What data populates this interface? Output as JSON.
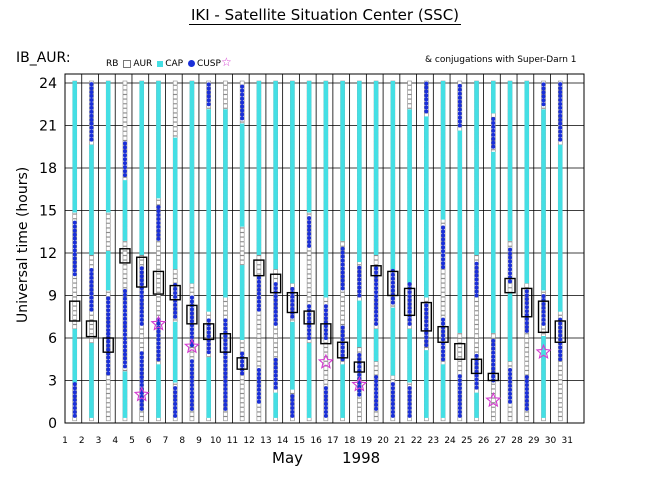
{
  "title": "IKI - Satellite Situation Center (SSC)",
  "panel_label": "IB_AUR:",
  "legend": {
    "rb": "RB",
    "aur": "AUR",
    "cap": "CAP",
    "cusp": "CUSP",
    "conjugation_note": "& conjugations with Super-Darn 1"
  },
  "colors": {
    "aur": "#8a8a8a",
    "cap": "#44dfe4",
    "cusp": "#1a2fd8",
    "conjugation": "#d43ad0",
    "rb_box": "#000000"
  },
  "chart_data": {
    "type": "scatter",
    "title": "IKI - Satellite Situation Center (SSC)",
    "ylabel": "Universal time (hours)",
    "xlabel_month": "May",
    "xlabel_year": "1998",
    "xlim": [
      1,
      32
    ],
    "ylim": [
      0,
      24
    ],
    "x_ticks": [
      1,
      2,
      3,
      4,
      5,
      6,
      7,
      8,
      9,
      10,
      11,
      12,
      13,
      14,
      15,
      16,
      17,
      18,
      19,
      20,
      21,
      22,
      23,
      24,
      25,
      26,
      27,
      28,
      29,
      30,
      31
    ],
    "y_ticks": [
      0,
      3,
      6,
      9,
      12,
      15,
      18,
      21,
      24
    ],
    "grid": true,
    "rb_boxes": [
      {
        "day": 2,
        "start": 7.2,
        "end": 8.6
      },
      {
        "day": 3,
        "start": 6.1,
        "end": 7.2
      },
      {
        "day": 4,
        "start": 5.0,
        "end": 6.0
      },
      {
        "day": 5,
        "start": 11.3,
        "end": 12.3
      },
      {
        "day": 6,
        "start": 9.6,
        "end": 11.7
      },
      {
        "day": 7,
        "start": 9.1,
        "end": 10.7
      },
      {
        "day": 8,
        "start": 8.7,
        "end": 9.7
      },
      {
        "day": 9,
        "start": 7.0,
        "end": 8.3
      },
      {
        "day": 10,
        "start": 5.9,
        "end": 7.0
      },
      {
        "day": 11,
        "start": 5.0,
        "end": 6.3
      },
      {
        "day": 12,
        "start": 3.8,
        "end": 4.6
      },
      {
        "day": 13,
        "start": 10.4,
        "end": 11.5
      },
      {
        "day": 14,
        "start": 9.2,
        "end": 10.5
      },
      {
        "day": 15,
        "start": 7.8,
        "end": 9.2
      },
      {
        "day": 16,
        "start": 7.0,
        "end": 7.9
      },
      {
        "day": 17,
        "start": 5.6,
        "end": 7.0
      },
      {
        "day": 18,
        "start": 4.6,
        "end": 5.7
      },
      {
        "day": 19,
        "start": 3.6,
        "end": 4.3
      },
      {
        "day": 20,
        "start": 10.4,
        "end": 11.1
      },
      {
        "day": 21,
        "start": 9.0,
        "end": 10.7
      },
      {
        "day": 22,
        "start": 7.6,
        "end": 9.5
      },
      {
        "day": 23,
        "start": 6.5,
        "end": 8.5
      },
      {
        "day": 24,
        "start": 5.7,
        "end": 6.8
      },
      {
        "day": 25,
        "start": 4.5,
        "end": 5.6
      },
      {
        "day": 26,
        "start": 3.5,
        "end": 4.5
      },
      {
        "day": 27,
        "start": 3.0,
        "end": 3.5
      },
      {
        "day": 28,
        "start": 9.2,
        "end": 10.2
      },
      {
        "day": 29,
        "start": 7.5,
        "end": 9.5
      },
      {
        "day": 30,
        "start": 6.4,
        "end": 8.6
      },
      {
        "day": 31,
        "start": 5.7,
        "end": 7.2
      }
    ],
    "conjugations": [
      {
        "day": 6,
        "ut": 2.0
      },
      {
        "day": 7,
        "ut": 7.0
      },
      {
        "day": 9,
        "ut": 5.4
      },
      {
        "day": 17,
        "ut": 4.3
      },
      {
        "day": 19,
        "ut": 2.7
      },
      {
        "day": 27,
        "ut": 1.6
      },
      {
        "day": 30,
        "ut": 5.0
      }
    ],
    "cusp_bands": [
      {
        "day": 2,
        "start": 0.5,
        "end": 2.8
      },
      {
        "day": 2,
        "start": 10.5,
        "end": 14.2
      },
      {
        "day": 3,
        "start": 8.0,
        "end": 11.0
      },
      {
        "day": 3,
        "start": 20.0,
        "end": 24.0
      },
      {
        "day": 4,
        "start": 3.5,
        "end": 6.5
      },
      {
        "day": 4,
        "start": 6.0,
        "end": 9.0
      },
      {
        "day": 5,
        "start": 4.0,
        "end": 9.5
      },
      {
        "day": 5,
        "start": 17.5,
        "end": 20.0
      },
      {
        "day": 6,
        "start": 1.0,
        "end": 5.0
      },
      {
        "day": 6,
        "start": 7.0,
        "end": 11.0
      },
      {
        "day": 7,
        "start": 4.5,
        "end": 7.5
      },
      {
        "day": 7,
        "start": 13.0,
        "end": 15.5
      },
      {
        "day": 8,
        "start": 0.5,
        "end": 2.5
      },
      {
        "day": 8,
        "start": 7.5,
        "end": 10.0
      },
      {
        "day": 9,
        "start": 1.0,
        "end": 4.5
      },
      {
        "day": 9,
        "start": 5.5,
        "end": 9.0
      },
      {
        "day": 10,
        "start": 5.0,
        "end": 7.5
      },
      {
        "day": 10,
        "start": 22.5,
        "end": 24.0
      },
      {
        "day": 11,
        "start": 1.0,
        "end": 5.0
      },
      {
        "day": 11,
        "start": 5.0,
        "end": 7.5
      },
      {
        "day": 12,
        "start": 3.5,
        "end": 5.0
      },
      {
        "day": 12,
        "start": 21.5,
        "end": 24.0
      },
      {
        "day": 13,
        "start": 1.5,
        "end": 4.0
      },
      {
        "day": 13,
        "start": 8.0,
        "end": 10.5
      },
      {
        "day": 14,
        "start": 2.5,
        "end": 4.5
      },
      {
        "day": 14,
        "start": 7.0,
        "end": 10.0
      },
      {
        "day": 15,
        "start": 0.5,
        "end": 2.0
      },
      {
        "day": 15,
        "start": 7.5,
        "end": 9.5
      },
      {
        "day": 16,
        "start": 6.0,
        "end": 8.5
      },
      {
        "day": 16,
        "start": 12.5,
        "end": 14.5
      },
      {
        "day": 17,
        "start": 0.5,
        "end": 2.5
      },
      {
        "day": 17,
        "start": 6.0,
        "end": 8.5
      },
      {
        "day": 18,
        "start": 4.5,
        "end": 7.0
      },
      {
        "day": 18,
        "start": 9.5,
        "end": 12.5
      },
      {
        "day": 19,
        "start": 2.0,
        "end": 5.0
      },
      {
        "day": 19,
        "start": 9.0,
        "end": 11.0
      },
      {
        "day": 20,
        "start": 1.0,
        "end": 3.5
      },
      {
        "day": 20,
        "start": 7.0,
        "end": 11.0
      },
      {
        "day": 21,
        "start": 0.5,
        "end": 3.0
      },
      {
        "day": 21,
        "start": 8.5,
        "end": 11.0
      },
      {
        "day": 22,
        "start": 0.5,
        "end": 2.5
      },
      {
        "day": 22,
        "start": 7.0,
        "end": 10.0
      },
      {
        "day": 23,
        "start": 5.5,
        "end": 8.5
      },
      {
        "day": 23,
        "start": 22.0,
        "end": 24.0
      },
      {
        "day": 24,
        "start": 4.5,
        "end": 7.5
      },
      {
        "day": 24,
        "start": 11.0,
        "end": 14.0
      },
      {
        "day": 25,
        "start": 0.5,
        "end": 3.5
      },
      {
        "day": 25,
        "start": 21.0,
        "end": 24.0
      },
      {
        "day": 26,
        "start": 2.5,
        "end": 5.0
      },
      {
        "day": 26,
        "start": 9.0,
        "end": 11.5
      },
      {
        "day": 27,
        "start": 3.0,
        "end": 6.0
      },
      {
        "day": 27,
        "start": 19.5,
        "end": 21.5
      },
      {
        "day": 28,
        "start": 1.5,
        "end": 4.0
      },
      {
        "day": 28,
        "start": 10.0,
        "end": 12.5
      },
      {
        "day": 29,
        "start": 1.0,
        "end": 3.5
      },
      {
        "day": 29,
        "start": 6.5,
        "end": 9.5
      },
      {
        "day": 30,
        "start": 7.0,
        "end": 9.0
      },
      {
        "day": 30,
        "start": 22.5,
        "end": 24.0
      },
      {
        "day": 31,
        "start": 4.5,
        "end": 7.5
      },
      {
        "day": 31,
        "start": 20.0,
        "end": 24.0
      }
    ],
    "cap_bands": [
      {
        "day": 2,
        "start": 3.0,
        "end": 6.5
      },
      {
        "day": 2,
        "start": 15.0,
        "end": 24.0
      },
      {
        "day": 3,
        "start": 0.5,
        "end": 5.5
      },
      {
        "day": 3,
        "start": 12.0,
        "end": 19.5
      },
      {
        "day": 4,
        "start": 9.5,
        "end": 12.0
      },
      {
        "day": 4,
        "start": 15.0,
        "end": 24.0
      },
      {
        "day": 5,
        "start": 0.5,
        "end": 3.5
      },
      {
        "day": 5,
        "start": 13.0,
        "end": 17.0
      },
      {
        "day": 6,
        "start": 12.0,
        "end": 24.0
      },
      {
        "day": 7,
        "start": 0.5,
        "end": 4.0
      },
      {
        "day": 7,
        "start": 16.0,
        "end": 24.0
      },
      {
        "day": 8,
        "start": 3.0,
        "end": 7.0
      },
      {
        "day": 8,
        "start": 11.0,
        "end": 20.0
      },
      {
        "day": 9,
        "start": 10.0,
        "end": 24.0
      },
      {
        "day": 10,
        "start": 0.5,
        "end": 4.5
      },
      {
        "day": 10,
        "start": 8.0,
        "end": 22.0
      },
      {
        "day": 11,
        "start": 9.0,
        "end": 22.0
      },
      {
        "day": 12,
        "start": 6.0,
        "end": 11.0
      },
      {
        "day": 12,
        "start": 14.0,
        "end": 21.0
      },
      {
        "day": 13,
        "start": 12.0,
        "end": 24.0
      },
      {
        "day": 14,
        "start": 0.5,
        "end": 2.0
      },
      {
        "day": 14,
        "start": 11.0,
        "end": 24.0
      },
      {
        "day": 15,
        "start": 2.5,
        "end": 7.0
      },
      {
        "day": 15,
        "start": 10.0,
        "end": 24.0
      },
      {
        "day": 16,
        "start": 0.5,
        "end": 5.5
      },
      {
        "day": 16,
        "start": 15.0,
        "end": 24.0
      },
      {
        "day": 17,
        "start": 9.0,
        "end": 24.0
      },
      {
        "day": 18,
        "start": 0.5,
        "end": 4.0
      },
      {
        "day": 18,
        "start": 13.0,
        "end": 24.0
      },
      {
        "day": 19,
        "start": 5.5,
        "end": 8.5
      },
      {
        "day": 19,
        "start": 11.5,
        "end": 24.0
      },
      {
        "day": 20,
        "start": 4.5,
        "end": 6.5
      },
      {
        "day": 20,
        "start": 12.0,
        "end": 24.0
      },
      {
        "day": 21,
        "start": 3.5,
        "end": 8.0
      },
      {
        "day": 21,
        "start": 11.0,
        "end": 24.0
      },
      {
        "day": 22,
        "start": 3.0,
        "end": 6.5
      },
      {
        "day": 22,
        "start": 10.0,
        "end": 22.0
      },
      {
        "day": 23,
        "start": 0.5,
        "end": 5.0
      },
      {
        "day": 23,
        "start": 9.0,
        "end": 21.5
      },
      {
        "day": 24,
        "start": 0.5,
        "end": 4.0
      },
      {
        "day": 24,
        "start": 14.5,
        "end": 24.0
      },
      {
        "day": 25,
        "start": 6.5,
        "end": 20.5
      },
      {
        "day": 26,
        "start": 0.5,
        "end": 2.0
      },
      {
        "day": 26,
        "start": 12.0,
        "end": 24.0
      },
      {
        "day": 27,
        "start": 6.5,
        "end": 19.0
      },
      {
        "day": 27,
        "start": 22.0,
        "end": 24.0
      },
      {
        "day": 28,
        "start": 4.5,
        "end": 9.0
      },
      {
        "day": 28,
        "start": 13.0,
        "end": 24.0
      },
      {
        "day": 29,
        "start": 10.0,
        "end": 24.0
      },
      {
        "day": 30,
        "start": 0.5,
        "end": 6.0
      },
      {
        "day": 30,
        "start": 9.5,
        "end": 22.0
      },
      {
        "day": 31,
        "start": 8.0,
        "end": 19.5
      }
    ]
  }
}
